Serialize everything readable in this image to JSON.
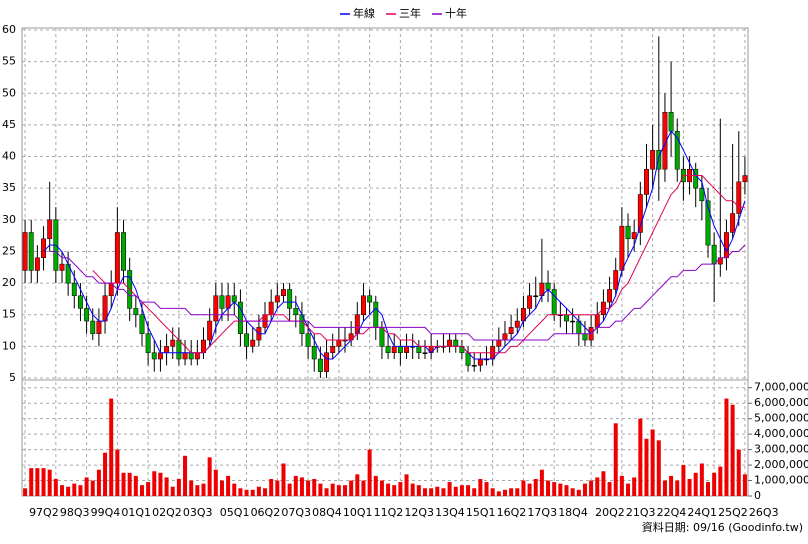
{
  "chart_data": {
    "type": "candlestick",
    "source": "資料日期: 09/16 (Goodinfo.tw)",
    "categories": [
      "97Q2",
      null,
      null,
      null,
      null,
      "98Q3",
      null,
      null,
      null,
      null,
      "99Q4",
      null,
      null,
      null,
      null,
      "01Q1",
      null,
      null,
      null,
      null,
      "02Q2",
      null,
      null,
      null,
      null,
      "03Q3",
      null,
      null,
      null,
      null,
      null,
      "05Q1",
      null,
      null,
      null,
      null,
      "06Q2",
      null,
      null,
      null,
      null,
      "07Q3",
      null,
      null,
      null,
      null,
      "08Q4",
      null,
      null,
      null,
      null,
      "10Q1",
      null,
      null,
      null,
      null,
      "11Q2",
      null,
      null,
      null,
      null,
      "12Q3",
      null,
      null,
      null,
      null,
      "13Q4",
      null,
      null,
      null,
      null,
      "15Q1",
      null,
      null,
      null,
      null,
      "16Q2",
      null,
      null,
      null,
      null,
      "17Q3",
      null,
      null,
      null,
      null,
      "18Q4",
      null,
      null,
      null,
      null,
      null,
      "20Q2",
      null,
      null,
      null,
      null,
      "21Q3",
      null,
      null,
      null,
      null,
      "22Q4",
      null,
      null,
      null,
      null,
      "24Q1",
      null,
      null,
      null,
      null,
      "25Q2",
      null,
      null,
      null,
      null,
      "26Q3"
    ],
    "open": [
      22,
      28,
      22,
      24,
      27,
      30,
      22,
      23,
      20,
      18,
      16,
      14,
      12,
      14,
      18,
      20,
      28,
      22,
      16,
      15,
      12,
      9,
      8,
      9,
      10,
      11,
      8,
      9,
      8,
      9,
      11,
      14,
      18,
      16,
      18,
      17,
      12,
      10,
      11,
      13,
      15,
      17,
      18,
      19,
      16,
      15,
      12,
      10,
      8,
      6,
      9,
      10,
      11,
      11,
      12,
      15,
      18,
      17,
      13,
      10,
      9,
      10,
      9,
      10,
      10,
      9,
      9,
      10,
      10,
      10,
      11,
      10,
      9,
      7,
      7,
      8,
      8,
      10,
      11,
      12,
      13,
      14,
      16,
      18,
      18,
      20,
      19,
      15,
      15,
      14,
      14,
      12,
      11,
      13,
      15,
      17,
      19,
      22,
      29,
      27,
      28,
      34,
      38,
      41,
      38,
      47,
      44,
      38,
      36,
      38,
      35,
      33,
      26,
      23,
      24,
      28,
      31,
      36
    ],
    "high": [
      30,
      30,
      26,
      29,
      36,
      32,
      25,
      25,
      22,
      20,
      18,
      16,
      16,
      20,
      22,
      32,
      30,
      24,
      18,
      17,
      14,
      11,
      11,
      12,
      13,
      13,
      11,
      11,
      11,
      13,
      16,
      20,
      20,
      20,
      20,
      19,
      14,
      13,
      15,
      17,
      19,
      20,
      20,
      20,
      18,
      17,
      14,
      12,
      10,
      11,
      12,
      13,
      13,
      14,
      17,
      20,
      19,
      18,
      14,
      12,
      12,
      11,
      12,
      12,
      11,
      11,
      12,
      11,
      12,
      12,
      12,
      11,
      10,
      9,
      9,
      10,
      11,
      13,
      14,
      15,
      16,
      18,
      20,
      21,
      27,
      22,
      20,
      17,
      16,
      16,
      15,
      14,
      15,
      17,
      19,
      21,
      24,
      32,
      31,
      30,
      36,
      42,
      45,
      59,
      50,
      55,
      46,
      40,
      40,
      39,
      37,
      35,
      28,
      46,
      30,
      42,
      44,
      40
    ],
    "low": [
      20,
      20,
      20,
      22,
      25,
      20,
      20,
      18,
      16,
      14,
      12,
      11,
      10,
      12,
      16,
      18,
      20,
      14,
      13,
      10,
      7,
      6,
      6,
      7,
      8,
      7,
      7,
      7,
      7,
      8,
      10,
      12,
      14,
      14,
      15,
      10,
      8,
      9,
      10,
      12,
      14,
      16,
      17,
      14,
      13,
      10,
      8,
      6,
      5,
      5,
      8,
      9,
      9,
      10,
      11,
      14,
      15,
      11,
      8,
      8,
      8,
      7,
      8,
      8,
      8,
      8,
      8,
      9,
      9,
      9,
      9,
      8,
      6,
      6,
      6,
      7,
      7,
      9,
      10,
      11,
      12,
      13,
      15,
      16,
      17,
      17,
      14,
      13,
      12,
      12,
      10,
      10,
      10,
      12,
      14,
      16,
      18,
      21,
      24,
      25,
      26,
      32,
      35,
      33,
      36,
      40,
      36,
      33,
      34,
      32,
      30,
      24,
      17,
      21,
      22,
      27,
      29,
      34
    ],
    "close": [
      28,
      22,
      24,
      27,
      30,
      22,
      23,
      20,
      18,
      16,
      14,
      12,
      14,
      18,
      20,
      28,
      22,
      16,
      15,
      12,
      9,
      8,
      9,
      10,
      11,
      8,
      9,
      8,
      9,
      11,
      14,
      18,
      16,
      18,
      17,
      12,
      10,
      11,
      13,
      15,
      17,
      18,
      19,
      16,
      15,
      12,
      10,
      8,
      6,
      9,
      10,
      11,
      11,
      12,
      15,
      18,
      17,
      13,
      10,
      9,
      10,
      9,
      10,
      10,
      9,
      9,
      10,
      10,
      10,
      11,
      10,
      9,
      7,
      7,
      8,
      8,
      10,
      11,
      12,
      13,
      14,
      16,
      18,
      18,
      20,
      19,
      15,
      15,
      14,
      14,
      12,
      11,
      13,
      15,
      17,
      19,
      22,
      29,
      27,
      28,
      34,
      38,
      41,
      38,
      47,
      44,
      38,
      36,
      38,
      35,
      33,
      26,
      23,
      24,
      28,
      31,
      36,
      37
    ],
    "volume": [
      500000,
      1800000,
      1800000,
      1800000,
      1700000,
      1100000,
      700000,
      600000,
      800000,
      700000,
      1200000,
      1000000,
      1700000,
      2800000,
      6300000,
      3000000,
      1500000,
      1500000,
      1300000,
      700000,
      900000,
      1600000,
      1500000,
      1200000,
      600000,
      1100000,
      2600000,
      1000000,
      700000,
      800000,
      2500000,
      1700000,
      1000000,
      1300000,
      800000,
      500000,
      400000,
      400000,
      600000,
      500000,
      1100000,
      1000000,
      2100000,
      800000,
      1300000,
      1200000,
      1000000,
      1100000,
      800000,
      500000,
      800000,
      700000,
      700000,
      1000000,
      1400000,
      1000000,
      3000000,
      1300000,
      1000000,
      800000,
      700000,
      900000,
      1400000,
      800000,
      700000,
      500000,
      500000,
      600000,
      500000,
      900000,
      600000,
      700000,
      700000,
      500000,
      1100000,
      900000,
      500000,
      300000,
      400000,
      500000,
      500000,
      1000000,
      800000,
      1100000,
      1700000,
      1000000,
      900000,
      800000,
      700000,
      500000,
      400000,
      800000,
      1000000,
      1200000,
      1600000,
      900000,
      4700000,
      1300000,
      800000,
      1200000,
      5000000,
      3700000,
      4300000,
      3600000,
      1000000,
      1300000,
      1000000,
      2000000,
      1100000,
      1500000,
      2100000,
      900000,
      1500000,
      1900000,
      6300000,
      5900000,
      3000000,
      1400000
    ],
    "up_color": "#ff0000",
    "down_color": "#00a800",
    "volume_color": "#ee0000",
    "series": [
      {
        "name": "年線",
        "color": "#0000ff",
        "values": [
          null,
          null,
          null,
          25,
          26,
          26,
          25,
          23,
          21,
          19,
          17,
          15,
          14,
          14,
          16,
          19,
          21,
          21,
          19,
          16,
          13,
          11,
          9,
          9,
          9,
          9,
          9,
          9,
          9,
          9,
          10,
          13,
          15,
          16,
          17,
          16,
          14,
          13,
          12,
          12,
          14,
          16,
          17,
          17,
          17,
          15,
          13,
          11,
          9,
          8,
          8,
          9,
          10,
          11,
          12,
          14,
          15,
          16,
          15,
          12,
          10,
          10,
          10,
          10,
          10,
          10,
          9,
          10,
          10,
          10,
          10,
          10,
          9,
          8,
          8,
          8,
          8,
          9,
          10,
          11,
          12,
          14,
          15,
          16,
          18,
          19,
          18,
          17,
          16,
          15,
          14,
          13,
          12,
          13,
          14,
          16,
          18,
          22,
          24,
          26,
          29,
          32,
          35,
          40,
          42,
          44,
          43,
          41,
          39,
          37,
          36,
          32,
          29,
          27,
          25,
          27,
          30,
          33
        ]
      },
      {
        "name": "三年",
        "color": "#e0005a",
        "values": [
          null,
          null,
          null,
          null,
          null,
          null,
          null,
          null,
          null,
          null,
          null,
          22,
          21,
          20,
          20,
          20,
          20,
          19,
          18,
          17,
          16,
          15,
          14,
          13,
          12,
          11,
          10,
          9,
          9,
          9,
          10,
          11,
          12,
          13,
          14,
          14,
          14,
          14,
          14,
          15,
          15,
          15,
          15,
          14,
          14,
          14,
          13,
          12,
          12,
          11,
          11,
          11,
          11,
          11,
          12,
          12,
          13,
          13,
          13,
          12,
          12,
          11,
          11,
          11,
          10,
          10,
          10,
          10,
          10,
          10,
          10,
          10,
          9,
          9,
          9,
          9,
          9,
          9,
          9,
          10,
          10,
          11,
          12,
          13,
          14,
          15,
          15,
          15,
          15,
          15,
          15,
          15,
          15,
          15,
          16,
          16,
          17,
          19,
          20,
          22,
          24,
          26,
          28,
          30,
          32,
          34,
          35,
          37,
          37,
          37,
          37,
          36,
          35,
          34,
          33,
          33,
          32,
          32
        ]
      },
      {
        "name": "十年",
        "color": "#8a00c8",
        "values": [
          null,
          null,
          null,
          null,
          25,
          25,
          24,
          24,
          23,
          22,
          21,
          21,
          20,
          20,
          20,
          19,
          19,
          18,
          18,
          17,
          17,
          17,
          16,
          16,
          16,
          16,
          16,
          15,
          15,
          15,
          15,
          15,
          15,
          15,
          15,
          14,
          14,
          14,
          14,
          14,
          14,
          14,
          14,
          14,
          14,
          14,
          14,
          13,
          13,
          13,
          13,
          13,
          13,
          13,
          13,
          13,
          13,
          13,
          13,
          13,
          13,
          13,
          13,
          13,
          13,
          13,
          12,
          12,
          12,
          12,
          12,
          12,
          12,
          11,
          11,
          11,
          11,
          11,
          11,
          11,
          11,
          11,
          11,
          11,
          11,
          11,
          12,
          12,
          12,
          12,
          12,
          12,
          12,
          13,
          13,
          13,
          14,
          14,
          15,
          16,
          16,
          17,
          18,
          19,
          20,
          21,
          21,
          22,
          22,
          22,
          23,
          23,
          23,
          24,
          24,
          25,
          25,
          26
        ]
      }
    ],
    "ylim": [
      5,
      60
    ],
    "yticks": [
      5,
      10,
      15,
      20,
      25,
      30,
      35,
      40,
      45,
      50,
      55,
      60
    ],
    "y2lim": [
      0,
      7500000
    ],
    "y2ticks": [
      0,
      {
        "value": 1000000,
        "label": "1,000,000"
      },
      {
        "value": 2000000,
        "label": "2,000,000"
      },
      {
        "value": 3000000,
        "label": "3,000,000"
      },
      {
        "value": 4000000,
        "label": "4,000,000"
      },
      {
        "value": 5000000,
        "label": "5,000,000"
      },
      {
        "value": 6000000,
        "label": "6,000,000"
      },
      {
        "value": 7000000,
        "label": "7,000,000"
      }
    ],
    "grid": true
  }
}
